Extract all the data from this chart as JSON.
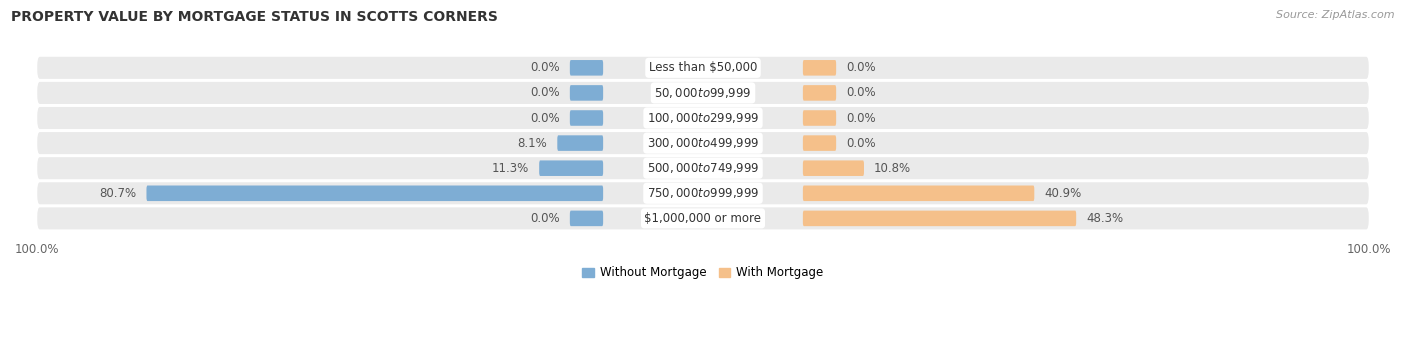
{
  "title": "PROPERTY VALUE BY MORTGAGE STATUS IN SCOTTS CORNERS",
  "source": "Source: ZipAtlas.com",
  "categories": [
    "Less than $50,000",
    "$50,000 to $99,999",
    "$100,000 to $299,999",
    "$300,000 to $499,999",
    "$500,000 to $749,999",
    "$750,000 to $999,999",
    "$1,000,000 or more"
  ],
  "without_mortgage": [
    0.0,
    0.0,
    0.0,
    8.1,
    11.3,
    80.7,
    0.0
  ],
  "with_mortgage": [
    0.0,
    0.0,
    0.0,
    0.0,
    10.8,
    40.9,
    48.3
  ],
  "without_mortgage_color": "#7eadd4",
  "with_mortgage_color": "#f5c08a",
  "row_bg_color": "#eaeaea",
  "row_bg_color_alt": "#f5f5f5",
  "title_fontsize": 10,
  "source_fontsize": 8,
  "label_fontsize": 8.5,
  "category_fontsize": 8.5,
  "axis_label_fontsize": 8.5,
  "xlim": 100,
  "min_bar_stub": 5.0,
  "figsize": [
    14.06,
    3.4
  ]
}
